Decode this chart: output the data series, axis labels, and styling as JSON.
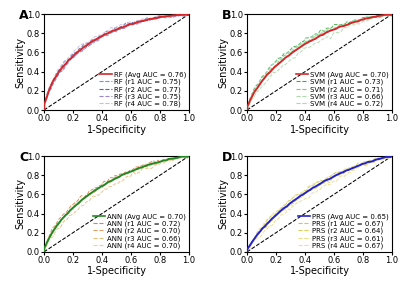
{
  "panels": [
    {
      "label": "A",
      "method": "RF",
      "avg_auc": 0.76,
      "run_aucs": [
        0.75,
        0.77,
        0.75,
        0.78
      ],
      "avg_color": "#d62728",
      "avg_lw": 1.4,
      "run_colors": [
        "#6699cc",
        "#5566aa",
        "#9988cc",
        "#ccbbdd"
      ],
      "run_lw": 0.7,
      "run_alpha": 0.9
    },
    {
      "label": "B",
      "method": "SVM",
      "avg_auc": 0.7,
      "run_aucs": [
        0.73,
        0.71,
        0.66,
        0.72
      ],
      "avg_color": "#d62728",
      "avg_lw": 1.4,
      "run_colors": [
        "#44aa44",
        "#77cc77",
        "#aaddaa",
        "#99ddbb"
      ],
      "run_lw": 0.7,
      "run_alpha": 0.9
    },
    {
      "label": "C",
      "method": "ANN",
      "avg_auc": 0.7,
      "run_aucs": [
        0.72,
        0.7,
        0.66,
        0.7
      ],
      "avg_color": "#228822",
      "avg_lw": 1.4,
      "run_colors": [
        "#e08050",
        "#e0a060",
        "#e8c080",
        "#e8d0a0"
      ],
      "run_lw": 0.7,
      "run_alpha": 0.9
    },
    {
      "label": "D",
      "method": "PRS",
      "avg_auc": 0.65,
      "run_aucs": [
        0.67,
        0.64,
        0.61,
        0.67
      ],
      "avg_color": "#2222cc",
      "avg_lw": 1.4,
      "run_colors": [
        "#cccc44",
        "#ddcc55",
        "#eedc88",
        "#eeddaa"
      ],
      "run_lw": 0.7,
      "run_alpha": 0.9
    }
  ],
  "xlabel": "1-Specificity",
  "ylabel": "Sensitivity",
  "xlim": [
    0.0,
    1.0
  ],
  "ylim": [
    0.0,
    1.0
  ],
  "tick_vals": [
    0.0,
    0.2,
    0.4,
    0.6,
    0.8,
    1.0
  ],
  "legend_fontsize": 5.0,
  "label_fontsize": 7,
  "tick_fontsize": 6,
  "background_color": "#ffffff"
}
